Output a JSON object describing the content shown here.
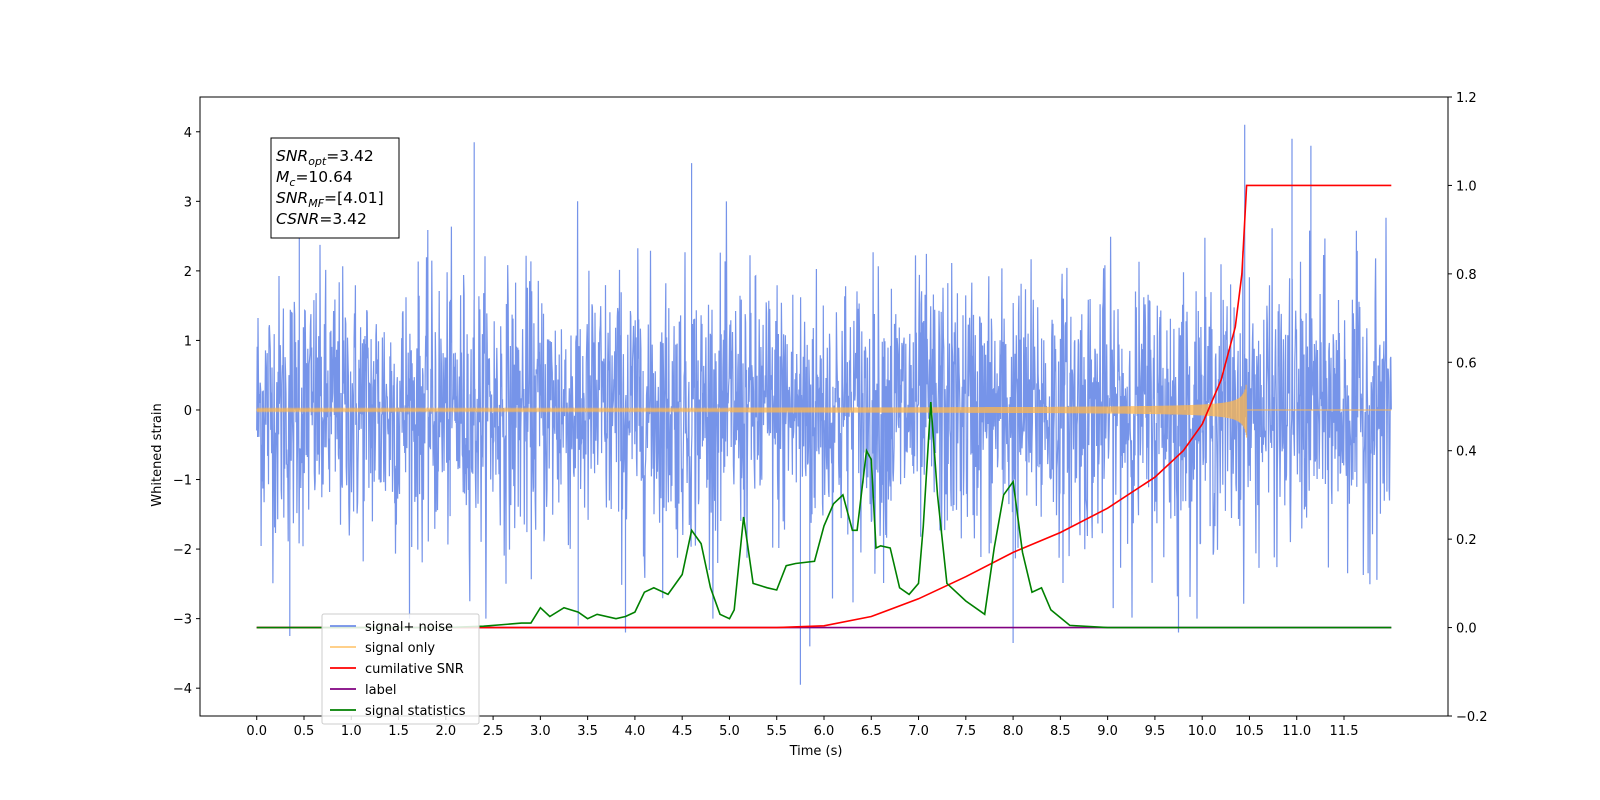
{
  "chart_data": {
    "type": "line",
    "xlabel": "Time (s)",
    "ylabel": "Whitened strain",
    "xlim": [
      -0.6,
      12.6
    ],
    "ylim_left": [
      -4.4,
      4.5
    ],
    "ylim_right": [
      -0.2,
      1.2
    ],
    "x_ticks": [
      "0.0",
      "0.5",
      "1.0",
      "1.5",
      "2.0",
      "2.5",
      "3.0",
      "3.5",
      "4.0",
      "4.5",
      "5.0",
      "5.5",
      "6.0",
      "6.5",
      "7.0",
      "7.5",
      "8.0",
      "8.5",
      "9.0",
      "9.5",
      "10.0",
      "10.5",
      "11.0",
      "11.5"
    ],
    "y_ticks_left": [
      "−4",
      "−3",
      "−2",
      "−1",
      "0",
      "1",
      "2",
      "3",
      "4"
    ],
    "y_ticks_right": [
      "−0.2",
      "0.0",
      "0.2",
      "0.4",
      "0.6",
      "0.8",
      "1.0",
      "1.2"
    ],
    "grid": false,
    "legend_position": "lower-left",
    "info_box": {
      "position": "top-left",
      "lines": [
        {
          "main": "SNR",
          "sub": "opt",
          "value": "=3.42"
        },
        {
          "main": "M",
          "sub": "c",
          "value": "=10.64"
        },
        {
          "main": "SNR",
          "sub": "MF",
          "value": "=[4.01]"
        },
        {
          "main": "CSNR",
          "sub": "",
          "value": "=3.42"
        }
      ]
    },
    "series": [
      {
        "name": "signal+ noise",
        "axis": "left",
        "color": "#6f8ee8",
        "kind": "noise",
        "x_range": [
          0.0,
          12.0
        ],
        "envelope_typical": [
          -1.5,
          1.5
        ],
        "spikes": [
          [
            0.35,
            -3.25
          ],
          [
            0.45,
            3.3
          ],
          [
            2.3,
            3.85
          ],
          [
            3.4,
            -3.1
          ],
          [
            3.9,
            -3.2
          ],
          [
            4.6,
            3.55
          ],
          [
            5.75,
            -3.95
          ],
          [
            5.85,
            -3.4
          ],
          [
            8.0,
            -3.35
          ],
          [
            9.75,
            -3.2
          ],
          [
            10.45,
            4.1
          ],
          [
            10.95,
            3.9
          ],
          [
            11.15,
            3.8
          ]
        ]
      },
      {
        "name": "signal only",
        "axis": "left",
        "color": "#ffb74d",
        "kind": "chirp",
        "x_range": [
          0.0,
          10.47
        ],
        "peak_amplitude": 0.4
      },
      {
        "name": "cumilative SNR",
        "axis": "right",
        "color": "#ff0000",
        "points": [
          [
            0.0,
            0.0
          ],
          [
            5.0,
            0.0
          ],
          [
            5.5,
            0.0
          ],
          [
            6.0,
            0.004
          ],
          [
            6.5,
            0.025
          ],
          [
            7.0,
            0.065
          ],
          [
            7.5,
            0.115
          ],
          [
            8.0,
            0.17
          ],
          [
            8.5,
            0.215
          ],
          [
            9.0,
            0.27
          ],
          [
            9.5,
            0.34
          ],
          [
            9.8,
            0.4
          ],
          [
            10.0,
            0.46
          ],
          [
            10.2,
            0.56
          ],
          [
            10.35,
            0.68
          ],
          [
            10.42,
            0.8
          ],
          [
            10.47,
            1.0
          ],
          [
            12.0,
            1.0
          ]
        ]
      },
      {
        "name": "label",
        "axis": "right",
        "color": "#800080",
        "points": [
          [
            0.0,
            0.0
          ],
          [
            12.0,
            0.0
          ]
        ]
      },
      {
        "name": "signal statistics",
        "axis": "right",
        "color": "#008000",
        "points": [
          [
            0.0,
            0.0
          ],
          [
            2.0,
            0.0
          ],
          [
            2.4,
            0.003
          ],
          [
            2.8,
            0.01
          ],
          [
            2.9,
            0.01
          ],
          [
            3.0,
            0.045
          ],
          [
            3.1,
            0.025
          ],
          [
            3.25,
            0.045
          ],
          [
            3.4,
            0.035
          ],
          [
            3.5,
            0.02
          ],
          [
            3.6,
            0.03
          ],
          [
            3.8,
            0.02
          ],
          [
            3.9,
            0.025
          ],
          [
            4.0,
            0.035
          ],
          [
            4.1,
            0.08
          ],
          [
            4.2,
            0.09
          ],
          [
            4.35,
            0.075
          ],
          [
            4.5,
            0.12
          ],
          [
            4.6,
            0.22
          ],
          [
            4.7,
            0.19
          ],
          [
            4.8,
            0.09
          ],
          [
            4.9,
            0.03
          ],
          [
            5.0,
            0.02
          ],
          [
            5.05,
            0.04
          ],
          [
            5.15,
            0.25
          ],
          [
            5.25,
            0.1
          ],
          [
            5.4,
            0.09
          ],
          [
            5.5,
            0.085
          ],
          [
            5.6,
            0.14
          ],
          [
            5.7,
            0.145
          ],
          [
            5.9,
            0.15
          ],
          [
            6.0,
            0.23
          ],
          [
            6.1,
            0.28
          ],
          [
            6.2,
            0.3
          ],
          [
            6.3,
            0.22
          ],
          [
            6.35,
            0.22
          ],
          [
            6.45,
            0.4
          ],
          [
            6.5,
            0.38
          ],
          [
            6.55,
            0.18
          ],
          [
            6.6,
            0.185
          ],
          [
            6.7,
            0.18
          ],
          [
            6.8,
            0.09
          ],
          [
            6.9,
            0.075
          ],
          [
            7.0,
            0.1
          ],
          [
            7.05,
            0.23
          ],
          [
            7.13,
            0.51
          ],
          [
            7.2,
            0.3
          ],
          [
            7.3,
            0.1
          ],
          [
            7.5,
            0.06
          ],
          [
            7.7,
            0.03
          ],
          [
            7.8,
            0.18
          ],
          [
            7.9,
            0.3
          ],
          [
            8.0,
            0.33
          ],
          [
            8.1,
            0.17
          ],
          [
            8.2,
            0.08
          ],
          [
            8.3,
            0.09
          ],
          [
            8.4,
            0.04
          ],
          [
            8.6,
            0.005
          ],
          [
            9.0,
            0.0
          ],
          [
            12.0,
            0.0
          ]
        ]
      }
    ]
  }
}
